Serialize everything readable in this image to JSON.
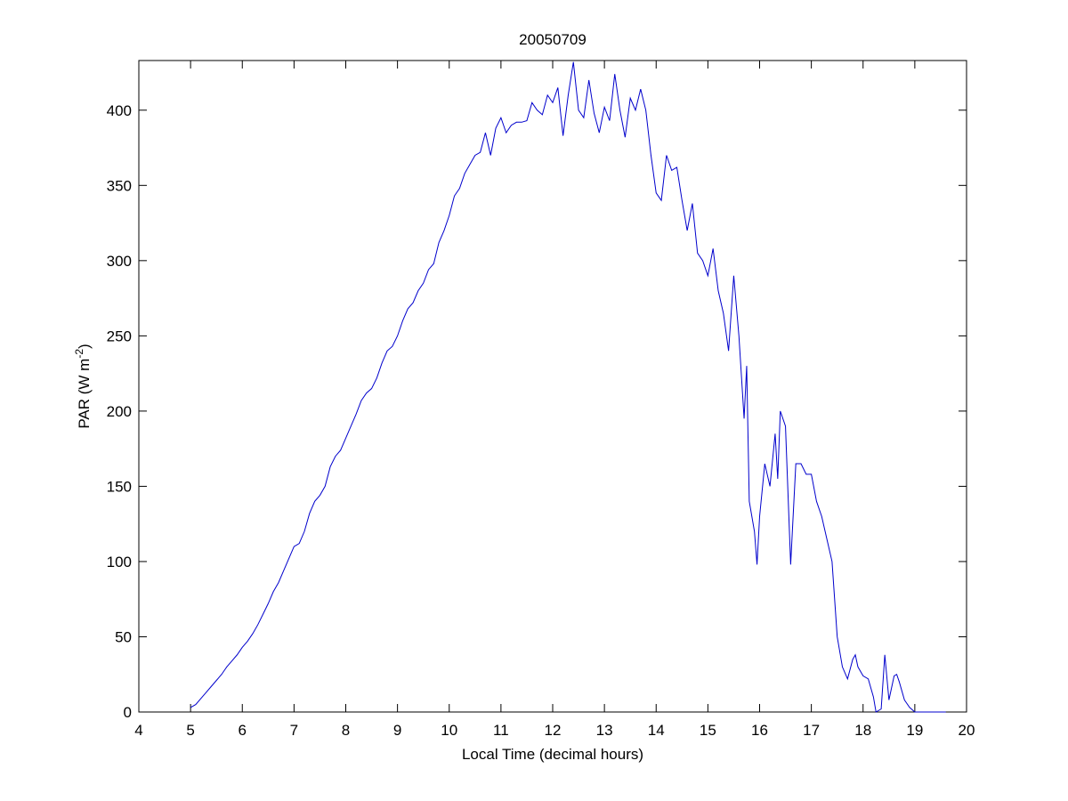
{
  "chart_data": {
    "type": "line",
    "title": "20050709",
    "xlabel": "Local Time (decimal hours)",
    "ylabel": [
      "PAR (W m",
      "-2",
      ")"
    ],
    "xlim": [
      4,
      20
    ],
    "xticks": [
      4,
      5,
      6,
      7,
      8,
      9,
      10,
      11,
      12,
      13,
      14,
      15,
      16,
      17,
      18,
      19,
      20
    ],
    "ylim": [
      0,
      433
    ],
    "yticks": [
      0,
      50,
      100,
      150,
      200,
      250,
      300,
      350,
      400
    ],
    "grid": false,
    "series": [
      {
        "color": "#0000cc",
        "x": [
          5.0,
          5.1,
          5.2,
          5.3,
          5.4,
          5.5,
          5.6,
          5.7,
          5.8,
          5.9,
          6.0,
          6.1,
          6.2,
          6.3,
          6.4,
          6.5,
          6.6,
          6.7,
          6.8,
          6.9,
          7.0,
          7.1,
          7.2,
          7.3,
          7.4,
          7.5,
          7.6,
          7.7,
          7.8,
          7.9,
          8.0,
          8.1,
          8.2,
          8.3,
          8.4,
          8.5,
          8.6,
          8.7,
          8.8,
          8.9,
          9.0,
          9.1,
          9.2,
          9.3,
          9.4,
          9.5,
          9.6,
          9.7,
          9.8,
          9.9,
          10.0,
          10.1,
          10.2,
          10.3,
          10.4,
          10.5,
          10.6,
          10.7,
          10.8,
          10.9,
          11.0,
          11.1,
          11.2,
          11.3,
          11.4,
          11.5,
          11.6,
          11.7,
          11.8,
          11.9,
          12.0,
          12.1,
          12.2,
          12.3,
          12.4,
          12.5,
          12.6,
          12.7,
          12.8,
          12.9,
          13.0,
          13.1,
          13.2,
          13.3,
          13.4,
          13.5,
          13.6,
          13.7,
          13.8,
          13.9,
          14.0,
          14.1,
          14.2,
          14.3,
          14.4,
          14.5,
          14.6,
          14.7,
          14.8,
          14.9,
          15.0,
          15.1,
          15.2,
          15.3,
          15.4,
          15.5,
          15.6,
          15.7,
          15.75,
          15.8,
          15.9,
          15.95,
          16.0,
          16.1,
          16.2,
          16.3,
          16.35,
          16.4,
          16.5,
          16.6,
          16.7,
          16.8,
          16.9,
          17.0,
          17.1,
          17.2,
          17.3,
          17.4,
          17.5,
          17.6,
          17.7,
          17.8,
          17.85,
          17.9,
          18.0,
          18.1,
          18.2,
          18.25,
          18.35,
          18.42,
          18.5,
          18.6,
          18.65,
          18.7,
          18.8,
          18.9,
          19.0,
          19.1,
          19.6
        ],
        "values": [
          3,
          5,
          9,
          13,
          17,
          21,
          25,
          30,
          34,
          38,
          43,
          47,
          52,
          58,
          65,
          72,
          80,
          86,
          94,
          102,
          110,
          112,
          120,
          132,
          140,
          144,
          150,
          163,
          170,
          174,
          182,
          190,
          198,
          207,
          212,
          215,
          222,
          232,
          240,
          243,
          250,
          260,
          268,
          272,
          280,
          285,
          294,
          298,
          312,
          320,
          330,
          343,
          348,
          358,
          364,
          370,
          372,
          385,
          370,
          388,
          395,
          385,
          390,
          392,
          392,
          393,
          405,
          400,
          397,
          410,
          405,
          415,
          383,
          410,
          432,
          400,
          395,
          420,
          398,
          385,
          402,
          393,
          424,
          400,
          382,
          408,
          400,
          414,
          400,
          370,
          345,
          340,
          370,
          360,
          362,
          340,
          320,
          338,
          305,
          300,
          290,
          308,
          280,
          265,
          240,
          290,
          250,
          195,
          230,
          140,
          120,
          98,
          130,
          165,
          150,
          185,
          155,
          200,
          190,
          98,
          165,
          165,
          158,
          158,
          140,
          130,
          115,
          100,
          50,
          30,
          22,
          35,
          38,
          30,
          24,
          22,
          10,
          0,
          2,
          38,
          8,
          24,
          25,
          20,
          8,
          3,
          0,
          0,
          0
        ]
      }
    ]
  }
}
